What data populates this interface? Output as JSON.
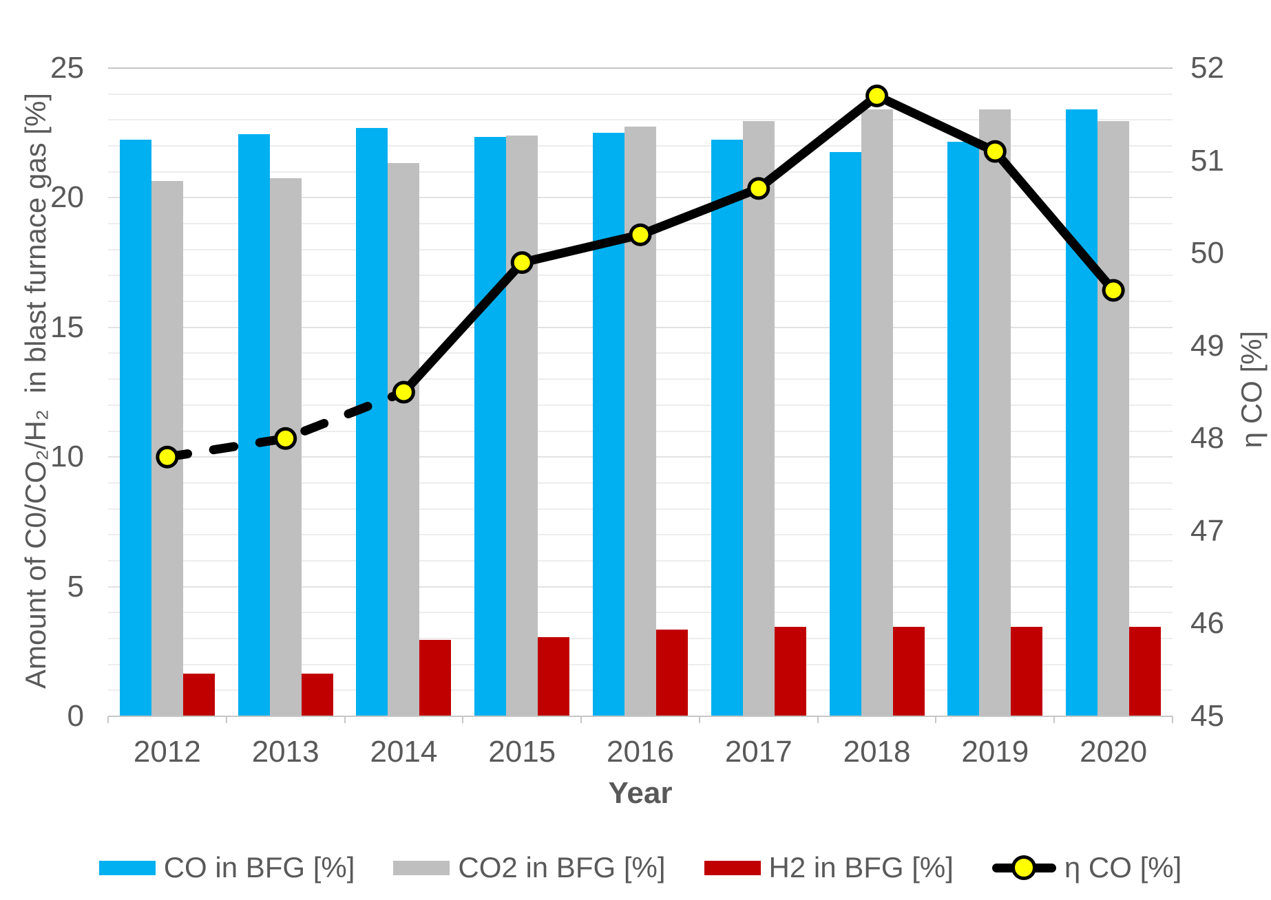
{
  "chart_data": {
    "type": "combo-bar-line",
    "title": "",
    "categories": [
      "2012",
      "2013",
      "2014",
      "2015",
      "2016",
      "2017",
      "2018",
      "2019",
      "2020"
    ],
    "series": [
      {
        "name": "CO in BFG [%]",
        "type": "bar",
        "color": "#00B0F0",
        "values": [
          22.25,
          22.45,
          22.7,
          22.35,
          22.5,
          22.25,
          21.75,
          22.15,
          23.4
        ]
      },
      {
        "name": "CO2 in BFG [%]",
        "type": "bar",
        "color": "#BFBFBF",
        "values": [
          20.65,
          20.75,
          21.35,
          22.4,
          22.75,
          22.95,
          23.4,
          23.4,
          22.95
        ]
      },
      {
        "name": "H2 in BFG [%]",
        "type": "bar",
        "color": "#C00000",
        "values": [
          1.65,
          1.65,
          2.95,
          3.05,
          3.35,
          3.45,
          3.45,
          3.45,
          3.45
        ]
      },
      {
        "name": "η CO [%]",
        "type": "line",
        "axis": "right",
        "color": "#000000",
        "marker_fill": "#FFFF00",
        "marker_stroke": "#000000",
        "values": [
          47.8,
          48.0,
          48.5,
          49.9,
          50.2,
          50.7,
          51.7,
          51.1,
          49.6
        ],
        "dashed_segments": "2012-2014",
        "solid_segments": "2014-2020"
      }
    ],
    "left_axis": {
      "title": "Amount of C0/CO₂/H₂  in blast furnace gas [%]",
      "min": 0,
      "max": 25,
      "ticks": [
        "0",
        "5",
        "10",
        "15",
        "20",
        "25"
      ],
      "minor_gridline_interval": 1,
      "major_gridline_interval": 5
    },
    "right_axis": {
      "title": "η CO [%]",
      "min": 45,
      "max": 52,
      "ticks": [
        "45",
        "46",
        "47",
        "48",
        "49",
        "50",
        "51",
        "52"
      ]
    },
    "x_axis": {
      "title": "Year"
    },
    "legend_position": "bottom",
    "grid": "horizontal minor gridlines on"
  },
  "colors": {
    "background": "#FFFFFF",
    "text": "#595959",
    "gridline_minor": "#EDEDED",
    "gridline_major": "#E2E2E2",
    "axis_line": "#C6C6C6",
    "co_bar": "#00B0F0",
    "co2_bar": "#BFBFBF",
    "h2_bar": "#C00000",
    "eta_line": "#000000",
    "marker_fill": "#FFFF00",
    "marker_stroke": "#000000"
  }
}
